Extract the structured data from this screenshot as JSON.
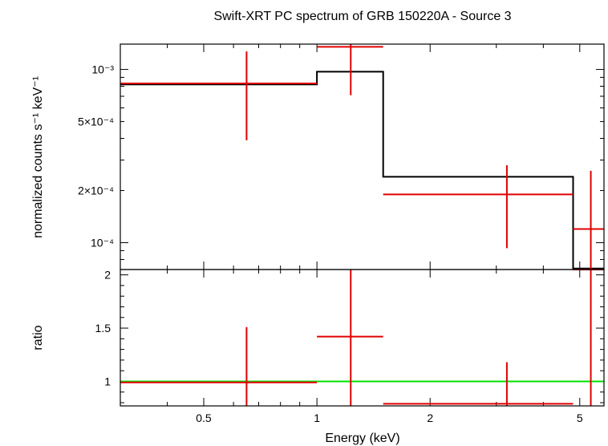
{
  "chart_data": [
    {
      "type": "scatter",
      "panel": "spectrum",
      "title": "Swift-XRT PC spectrum of GRB 150220A - Source 3",
      "ylabel": "normalized counts s⁻¹ keV⁻¹",
      "xlabel": "",
      "x_scale": "log",
      "y_scale": "log",
      "xlim": [
        0.3,
        5.8
      ],
      "ylim": [
        7e-05,
        0.0014
      ],
      "y_tick_labels": [
        {
          "value": 0.001,
          "label": "10⁻³"
        },
        {
          "value": 0.0005,
          "label": "5×10⁻⁴"
        },
        {
          "value": 0.0002,
          "label": "2×10⁻⁴"
        },
        {
          "value": 0.0001,
          "label": "10⁻⁴"
        }
      ],
      "data_points": [
        {
          "x_lo": 0.3,
          "x_hi": 1.0,
          "x": 0.65,
          "y": 0.00083,
          "y_lo": 0.00039,
          "y_hi": 0.00127
        },
        {
          "x_lo": 1.0,
          "x_hi": 1.5,
          "x": 1.23,
          "y": 0.00135,
          "y_lo": 0.00071,
          "y_hi": 0.00156
        },
        {
          "x_lo": 1.5,
          "x_hi": 4.8,
          "x": 3.2,
          "y": 0.00019,
          "y_lo": 9.3e-05,
          "y_hi": 0.00028
        },
        {
          "x_lo": 4.8,
          "x_hi": 5.8,
          "x": 5.35,
          "y": 0.00012,
          "y_lo": 7e-05,
          "y_hi": 0.00026
        }
      ],
      "model": [
        {
          "x_lo": 0.3,
          "x_hi": 1.0,
          "y": 0.00082
        },
        {
          "x_lo": 1.0,
          "x_hi": 1.5,
          "y": 0.00097
        },
        {
          "x_lo": 1.5,
          "x_hi": 4.8,
          "y": 0.00024
        },
        {
          "x_lo": 4.8,
          "x_hi": 5.8,
          "y": 7.1e-05
        }
      ],
      "colors": {
        "data": "#e00000",
        "model": "#000000"
      }
    },
    {
      "type": "scatter",
      "panel": "ratio",
      "ylabel": "ratio",
      "xlabel": "Energy (keV)",
      "x_scale": "log",
      "xlim": [
        0.3,
        5.8
      ],
      "ylim": [
        0.77,
        2.05
      ],
      "x_tick_labels": [
        {
          "value": 0.5,
          "label": "0.5"
        },
        {
          "value": 1,
          "label": "1"
        },
        {
          "value": 2,
          "label": "2"
        },
        {
          "value": 5,
          "label": "5"
        }
      ],
      "y_tick_labels": [
        {
          "value": 1,
          "label": "1"
        },
        {
          "value": 1.5,
          "label": "1.5"
        },
        {
          "value": 2,
          "label": "2"
        }
      ],
      "data_points": [
        {
          "x_lo": 0.3,
          "x_hi": 1.0,
          "x": 0.65,
          "y": 0.99,
          "y_lo": 0.77,
          "y_hi": 1.51
        },
        {
          "x_lo": 1.0,
          "x_hi": 1.5,
          "x": 1.23,
          "y": 1.42,
          "y_lo": 0.77,
          "y_hi": 2.05
        },
        {
          "x_lo": 1.5,
          "x_hi": 4.8,
          "x": 3.2,
          "y": 0.79,
          "y_lo": 0.77,
          "y_hi": 1.18
        },
        {
          "x_lo": 4.8,
          "x_hi": 5.8,
          "x": 5.35,
          "y": 2.05,
          "y_lo": 0.77,
          "y_hi": 2.05
        }
      ],
      "reference_line": 1.0,
      "colors": {
        "data": "#e00000",
        "reference": "#00e000"
      }
    }
  ]
}
